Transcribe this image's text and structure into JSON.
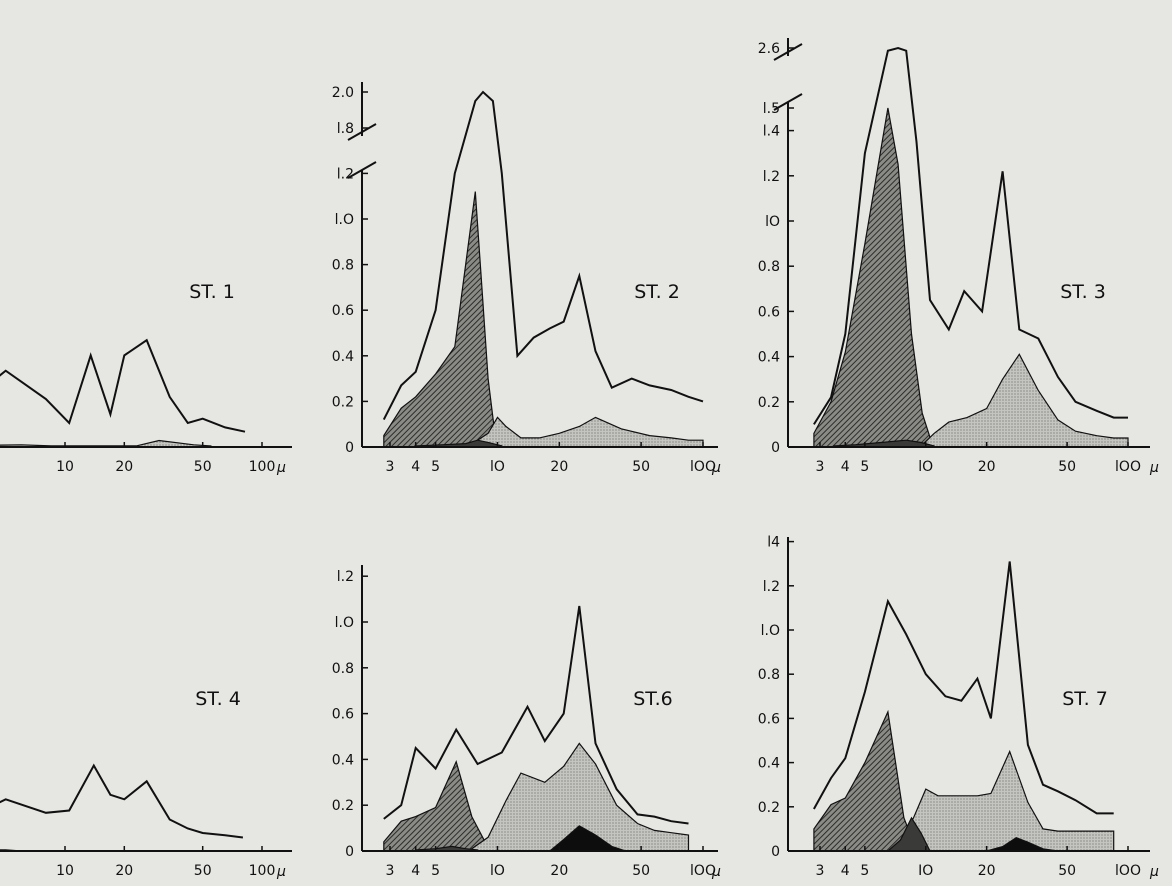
{
  "chart_data": [
    {
      "type": "area",
      "title": "ST. 1",
      "x_unit": "µ",
      "x_ticks": [
        10,
        20,
        50,
        100
      ],
      "x_tick_labels": [
        "10",
        "20",
        "50",
        "100"
      ],
      "y_ticks": [],
      "series": [
        {
          "role": "total",
          "x": [
            2.5,
            5,
            8,
            10.5,
            13.5,
            17,
            20,
            26,
            34,
            42,
            50,
            65,
            82
          ],
          "values": [
            0.13,
            0.35,
            0.22,
            0.11,
            0.42,
            0.15,
            0.42,
            0.49,
            0.23,
            0.11,
            0.13,
            0.09,
            0.07
          ]
        },
        {
          "role": "fine-stipple",
          "x": [
            2.5,
            6,
            8.5,
            23,
            30,
            45,
            55
          ],
          "values": [
            0.005,
            0.01,
            0.005,
            0.005,
            0.03,
            0.01,
            0.005
          ]
        }
      ]
    },
    {
      "type": "area",
      "title": "ST. 2",
      "x_unit": "µ",
      "x_ticks": [
        3,
        4,
        5,
        10,
        20,
        50,
        100
      ],
      "x_tick_labels": [
        "3",
        "4",
        "5",
        "lO",
        "20",
        "50",
        "lOO"
      ],
      "y_ticks": [
        0,
        0.2,
        0.4,
        0.6,
        0.8,
        1.0,
        1.2,
        1.8,
        2.0
      ],
      "y_tick_labels": [
        "0",
        "0.2",
        "0.4",
        "0.6",
        "0.8",
        "l.O",
        "l.2",
        "l.8",
        "2.0"
      ],
      "y_axis_break": [
        1.2,
        1.8
      ],
      "series": [
        {
          "role": "total",
          "x": [
            2.8,
            3.4,
            4,
            5,
            6.2,
            7.8,
            8.5,
            9.5,
            10.5,
            12.5,
            15,
            18,
            21,
            25,
            30,
            36,
            45,
            55,
            70,
            85,
            100
          ],
          "values": [
            0.12,
            0.27,
            0.33,
            0.6,
            1.2,
            1.95,
            2.0,
            1.95,
            1.2,
            0.4,
            0.48,
            0.52,
            0.55,
            0.75,
            0.42,
            0.26,
            0.3,
            0.27,
            0.25,
            0.22,
            0.2
          ]
        },
        {
          "role": "hatched",
          "x": [
            2.8,
            3.4,
            4,
            5,
            6.2,
            7.8,
            8.4,
            9,
            9.8
          ],
          "values": [
            0.05,
            0.17,
            0.22,
            0.32,
            0.44,
            1.12,
            0.7,
            0.3,
            0.03
          ]
        },
        {
          "role": "stippled",
          "x": [
            8,
            9,
            10,
            11,
            13,
            16,
            20,
            25,
            30,
            40,
            55,
            70,
            85,
            100
          ],
          "values": [
            0.03,
            0.06,
            0.13,
            0.09,
            0.04,
            0.04,
            0.06,
            0.09,
            0.13,
            0.08,
            0.05,
            0.04,
            0.03,
            0.03
          ]
        },
        {
          "role": "dark",
          "x": [
            4,
            5.5,
            7,
            8,
            9,
            10.5
          ],
          "values": [
            0.005,
            0.01,
            0.015,
            0.03,
            0.02,
            0.005
          ]
        }
      ]
    },
    {
      "type": "area",
      "title": "ST. 3",
      "x_unit": "µ",
      "x_ticks": [
        3,
        4,
        5,
        10,
        20,
        50,
        100
      ],
      "x_tick_labels": [
        "3",
        "4",
        "5",
        "lO",
        "20",
        "50",
        "lOO"
      ],
      "y_ticks": [
        0,
        0.2,
        0.4,
        0.6,
        0.8,
        1.0,
        1.2,
        1.4,
        1.5,
        2.6
      ],
      "y_tick_labels": [
        "0",
        "0.2",
        "0.4",
        "0.6",
        "0.8",
        "lO",
        "l.2",
        "l.4",
        "l.5",
        "2.6"
      ],
      "y_axis_break": [
        1.5,
        2.6
      ],
      "series": [
        {
          "role": "total",
          "x": [
            2.8,
            3.4,
            4,
            5,
            6.5,
            7.3,
            8,
            9,
            10.5,
            13,
            15.5,
            19,
            24,
            29,
            36,
            45,
            55,
            70,
            85,
            100
          ],
          "values": [
            0.1,
            0.22,
            0.5,
            1.3,
            2.55,
            2.6,
            2.55,
            1.35,
            0.65,
            0.52,
            0.69,
            0.6,
            1.22,
            0.52,
            0.48,
            0.31,
            0.2,
            0.16,
            0.13,
            0.13
          ]
        },
        {
          "role": "hatched",
          "x": [
            2.8,
            3.4,
            4,
            5,
            6.5,
            7.3,
            8.5,
            9.6,
            10.6
          ],
          "values": [
            0.06,
            0.2,
            0.42,
            0.9,
            1.5,
            1.25,
            0.5,
            0.15,
            0.03
          ]
        },
        {
          "role": "stippled",
          "x": [
            9.5,
            11,
            13,
            16,
            20,
            24,
            29,
            36,
            45,
            55,
            70,
            85,
            100
          ],
          "values": [
            0.005,
            0.06,
            0.11,
            0.13,
            0.17,
            0.3,
            0.41,
            0.25,
            0.12,
            0.07,
            0.05,
            0.04,
            0.04
          ]
        },
        {
          "role": "dark",
          "x": [
            3.5,
            4.5,
            6,
            8,
            9.5,
            11
          ],
          "values": [
            0.005,
            0.01,
            0.02,
            0.03,
            0.02,
            0.005
          ]
        }
      ]
    },
    {
      "type": "area",
      "title": "ST. 4",
      "x_unit": "µ",
      "x_ticks": [
        10,
        20,
        50,
        100
      ],
      "x_tick_labels": [
        "10",
        "20",
        "50",
        "100"
      ],
      "y_ticks": [],
      "series": [
        {
          "role": "total",
          "x": [
            2.5,
            5,
            8,
            10.5,
            14,
            17,
            20,
            26,
            34,
            42,
            50,
            65,
            80
          ],
          "values": [
            0.1,
            0.23,
            0.17,
            0.18,
            0.38,
            0.25,
            0.23,
            0.31,
            0.14,
            0.1,
            0.08,
            0.07,
            0.06
          ]
        },
        {
          "role": "dark",
          "x": [
            2.5,
            5,
            6
          ],
          "values": [
            0.01,
            0.005,
            0.0
          ]
        }
      ]
    },
    {
      "type": "area",
      "title": "ST.6",
      "x_unit": "µ",
      "x_ticks": [
        3,
        4,
        5,
        10,
        20,
        50,
        100
      ],
      "x_tick_labels": [
        "3",
        "4",
        "5",
        "lO",
        "20",
        "50",
        "lOO"
      ],
      "y_ticks": [
        0,
        0.2,
        0.4,
        0.6,
        0.8,
        1.0,
        1.2
      ],
      "y_tick_labels": [
        "0",
        "0.2",
        "0.4",
        "0.6",
        "0.8",
        "l.O",
        "l.2"
      ],
      "series": [
        {
          "role": "total",
          "x": [
            2.8,
            3.4,
            4,
            5,
            6.3,
            8,
            10.5,
            14,
            17,
            21,
            25,
            30,
            38,
            48,
            58,
            70,
            85
          ],
          "values": [
            0.14,
            0.2,
            0.45,
            0.36,
            0.53,
            0.38,
            0.43,
            0.63,
            0.48,
            0.6,
            1.07,
            0.47,
            0.27,
            0.16,
            0.15,
            0.13,
            0.12
          ]
        },
        {
          "role": "hatched",
          "x": [
            2.8,
            3.4,
            4,
            5,
            6.3,
            7.5,
            8.7,
            10
          ],
          "values": [
            0.04,
            0.13,
            0.15,
            0.19,
            0.39,
            0.15,
            0.04,
            0.01
          ]
        },
        {
          "role": "stippled",
          "x": [
            7.5,
            9,
            11,
            13,
            17,
            21,
            25,
            30,
            38,
            48,
            58,
            70,
            85
          ],
          "values": [
            0.01,
            0.06,
            0.22,
            0.34,
            0.3,
            0.37,
            0.47,
            0.38,
            0.2,
            0.12,
            0.09,
            0.08,
            0.07
          ]
        },
        {
          "role": "dark",
          "x": [
            4,
            5,
            6,
            7,
            8
          ],
          "values": [
            0.005,
            0.01,
            0.02,
            0.01,
            0.005
          ]
        },
        {
          "role": "black",
          "x": [
            18,
            21,
            25,
            30,
            36,
            42
          ],
          "values": [
            0.0,
            0.05,
            0.11,
            0.07,
            0.02,
            0.0
          ]
        }
      ]
    },
    {
      "type": "area",
      "title": "ST. 7",
      "x_unit": "µ",
      "x_ticks": [
        3,
        4,
        5,
        10,
        20,
        50,
        100
      ],
      "x_tick_labels": [
        "3",
        "4",
        "5",
        "IO",
        "20",
        "50",
        "lOO"
      ],
      "y_ticks": [
        0,
        0.2,
        0.4,
        0.6,
        0.8,
        1.0,
        1.2,
        1.4
      ],
      "y_tick_labels": [
        "0",
        "0.2",
        "0.4",
        "0.6",
        "0.8",
        "l.O",
        "l.2",
        "l4"
      ],
      "series": [
        {
          "role": "total",
          "x": [
            2.8,
            3.4,
            4,
            5,
            6.5,
            8,
            10,
            12.5,
            15,
            18,
            21,
            26,
            32,
            38,
            45,
            55,
            70,
            85
          ],
          "values": [
            0.19,
            0.33,
            0.42,
            0.72,
            1.13,
            0.98,
            0.8,
            0.7,
            0.68,
            0.78,
            0.6,
            1.31,
            0.48,
            0.3,
            0.27,
            0.23,
            0.17,
            0.17
          ]
        },
        {
          "role": "hatched",
          "x": [
            2.8,
            3.4,
            4,
            5,
            6.5,
            7.8,
            8.6,
            9.5
          ],
          "values": [
            0.1,
            0.21,
            0.24,
            0.4,
            0.63,
            0.15,
            0.05,
            0.01
          ]
        },
        {
          "role": "stippled",
          "x": [
            7.5,
            8.7,
            10,
            11.5,
            14,
            18,
            21,
            26,
            32,
            38,
            45,
            55,
            70,
            85
          ],
          "values": [
            0.05,
            0.15,
            0.28,
            0.25,
            0.25,
            0.25,
            0.26,
            0.45,
            0.22,
            0.1,
            0.09,
            0.09,
            0.09,
            0.09
          ]
        },
        {
          "role": "dark",
          "x": [
            6.5,
            7.5,
            8.5,
            9.5,
            10.5
          ],
          "values": [
            0.0,
            0.05,
            0.15,
            0.08,
            0.0
          ]
        },
        {
          "role": "black",
          "x": [
            20,
            24,
            28,
            32,
            38,
            45
          ],
          "values": [
            0.0,
            0.02,
            0.06,
            0.04,
            0.01,
            0.0
          ]
        }
      ]
    }
  ]
}
